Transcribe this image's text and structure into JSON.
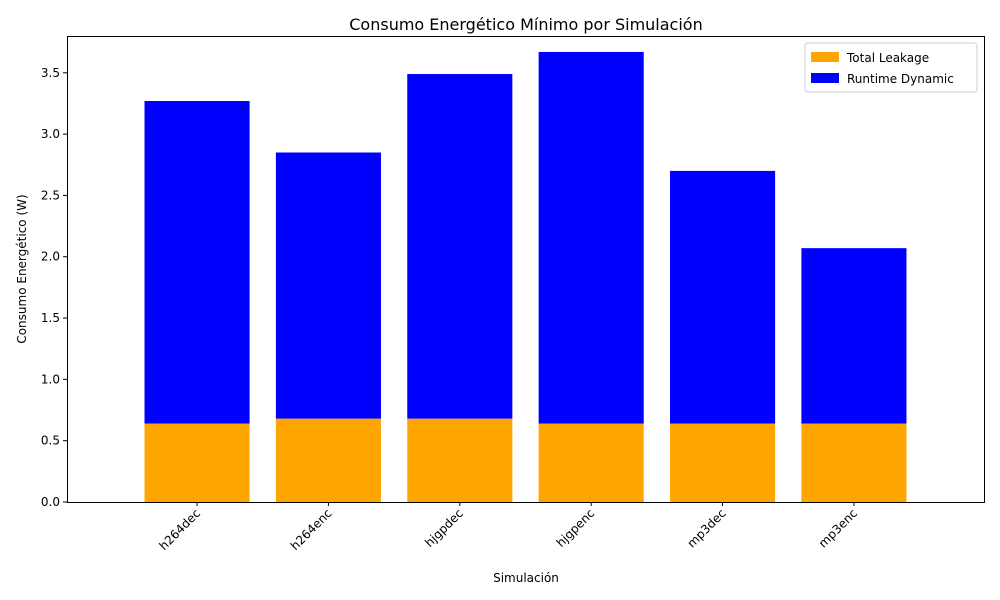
{
  "chart_data": {
    "type": "bar",
    "stacked": true,
    "title": "Consumo Energético Mínimo por Simulación",
    "xlabel": "Simulación",
    "ylabel": "Consumo Energético (W)",
    "categories": [
      "h264dec",
      "h264enc",
      "hjgpdec",
      "hjgpenc",
      "mp3dec",
      "mp3enc"
    ],
    "series": [
      {
        "name": "Total Leakage",
        "color": "#ffa500",
        "values": [
          0.64,
          0.68,
          0.68,
          0.64,
          0.64,
          0.64
        ]
      },
      {
        "name": "Runtime Dynamic",
        "color": "#0000ff",
        "values": [
          2.63,
          2.17,
          2.81,
          3.03,
          2.06,
          1.43
        ]
      }
    ],
    "ylim": [
      0,
      3.8
    ],
    "yticks": [
      "0.0",
      "0.5",
      "1.0",
      "1.5",
      "2.0",
      "2.5",
      "3.0",
      "3.5"
    ],
    "xtick_rotation": 45,
    "grid": false,
    "legend_position": "top-right"
  }
}
